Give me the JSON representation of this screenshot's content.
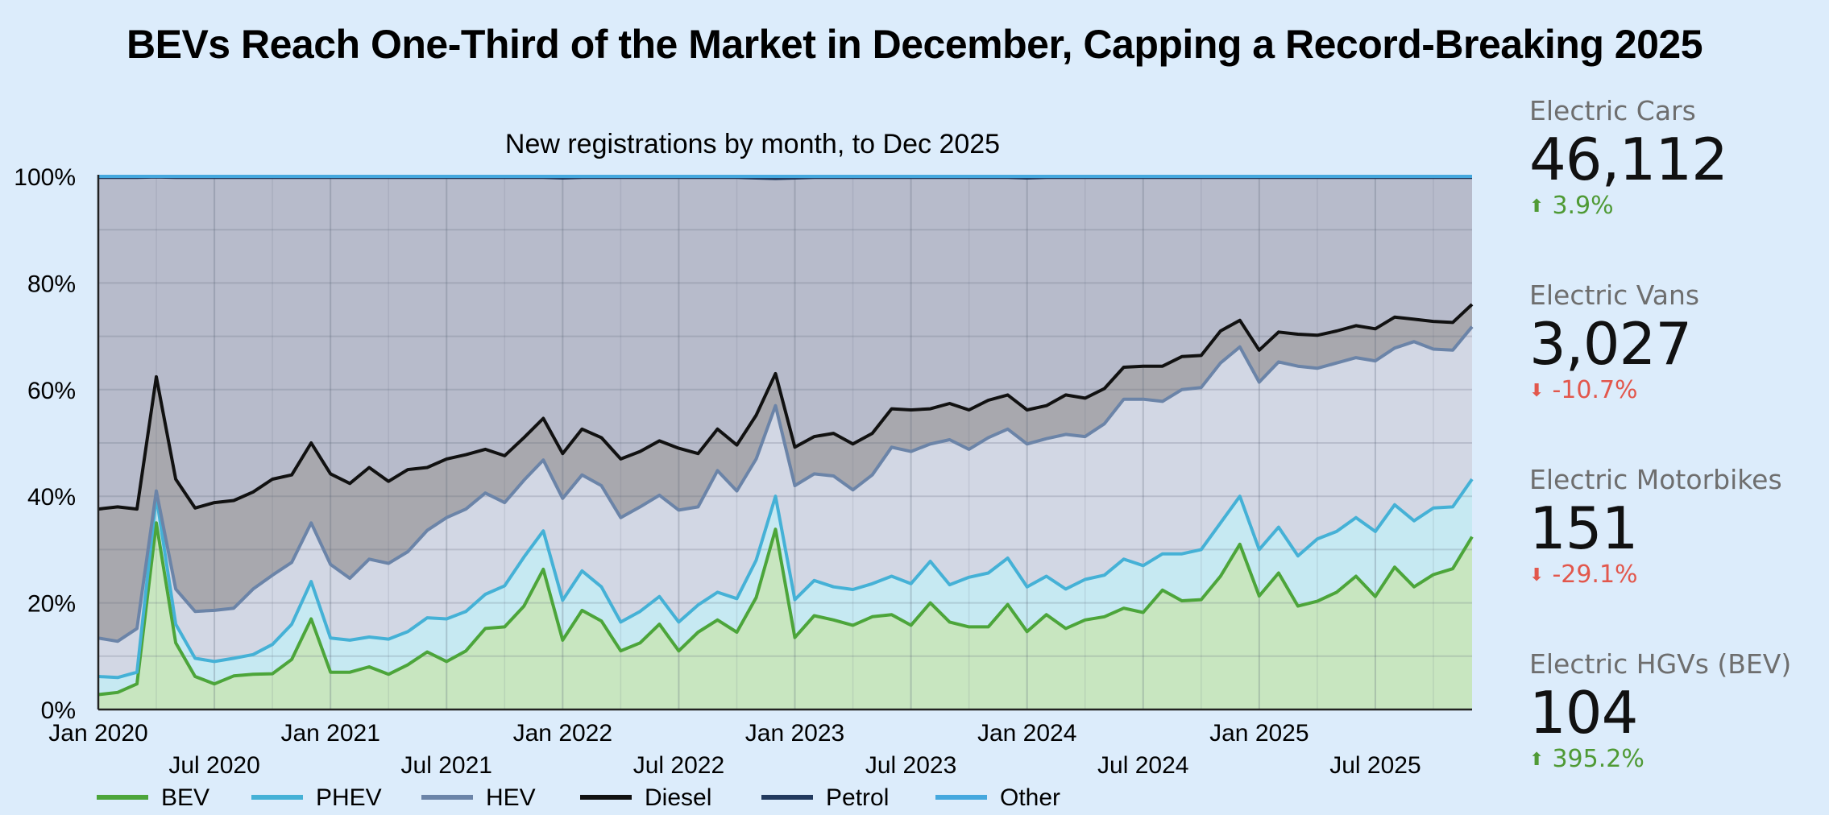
{
  "title": "BEVs Reach One-Third of the Market in December, Capping a Record-Breaking 2025",
  "chart_data": {
    "type": "area",
    "subtitle": "New registrations by month, to  Dec 2025",
    "stacked": true,
    "normalized": true,
    "ylim": [
      0,
      100
    ],
    "y_ticks": [
      "0%",
      "20%",
      "40%",
      "60%",
      "80%",
      "100%"
    ],
    "x_ticks": [
      {
        "index": 0,
        "label": "Jan 2020",
        "row": 0
      },
      {
        "index": 6,
        "label": "Jul 2020",
        "row": 1
      },
      {
        "index": 12,
        "label": "Jan 2021",
        "row": 0
      },
      {
        "index": 18,
        "label": "Jul 2021",
        "row": 1
      },
      {
        "index": 24,
        "label": "Jan 2022",
        "row": 0
      },
      {
        "index": 30,
        "label": "Jul 2022",
        "row": 1
      },
      {
        "index": 36,
        "label": "Jan 2023",
        "row": 0
      },
      {
        "index": 42,
        "label": "Jul 2023",
        "row": 1
      },
      {
        "index": 48,
        "label": "Jan 2024",
        "row": 0
      },
      {
        "index": 54,
        "label": "Jul 2024",
        "row": 1
      },
      {
        "index": 60,
        "label": "Jan 2025",
        "row": 0
      },
      {
        "index": 66,
        "label": "Jul 2025",
        "row": 1
      }
    ],
    "grid": true,
    "legend_position": "bottom",
    "series": [
      {
        "name": "BEV",
        "line_color": "#4ca53a",
        "fill_color": "#c8e6c0",
        "values": [
          2.8,
          3.2,
          4.8,
          35.0,
          12.5,
          6.2,
          4.8,
          6.3,
          6.6,
          6.7,
          9.4,
          17.0,
          7.0,
          7.0,
          8.0,
          6.6,
          8.4,
          10.8,
          9.0,
          11.0,
          15.2,
          15.5,
          19.4,
          26.3,
          13.0,
          18.6,
          16.6,
          11.0,
          12.5,
          16.0,
          11.0,
          14.5,
          16.8,
          14.5,
          21.0,
          33.8,
          13.5,
          17.6,
          16.8,
          15.8,
          17.4,
          17.8,
          15.8,
          20.0,
          16.4,
          15.5,
          15.5,
          19.7,
          14.6,
          17.8,
          15.2,
          16.8,
          17.4,
          19.0,
          18.2,
          22.4,
          20.4,
          20.6,
          25.0,
          31.0,
          21.3,
          25.6,
          19.4,
          20.3,
          22.0,
          25.0,
          21.2,
          26.7,
          23.0,
          25.3,
          26.4,
          32.4
        ]
      },
      {
        "name": "PHEV",
        "line_color": "#45b1d6",
        "fill_color": "#c6e9f2",
        "values": [
          6.2,
          6.0,
          7.0,
          40.0,
          16.0,
          9.6,
          9.0,
          9.6,
          10.3,
          12.2,
          16.0,
          24.0,
          13.4,
          13.0,
          13.6,
          13.2,
          14.6,
          17.2,
          17.0,
          18.4,
          21.6,
          23.2,
          28.6,
          33.5,
          20.5,
          26.0,
          23.0,
          16.4,
          18.4,
          21.2,
          16.4,
          19.6,
          22.0,
          20.8,
          28.0,
          40.0,
          20.6,
          24.2,
          23.0,
          22.5,
          23.6,
          25.0,
          23.6,
          27.8,
          23.4,
          24.8,
          25.6,
          28.4,
          23.0,
          25.0,
          22.6,
          24.4,
          25.2,
          28.2,
          27.0,
          29.2,
          29.2,
          30.0,
          35.0,
          40.0,
          30.0,
          34.2,
          28.8,
          32.0,
          33.4,
          36.0,
          33.4,
          38.4,
          35.4,
          37.8,
          38.0,
          43.2
        ]
      },
      {
        "name": "HEV",
        "line_color": "#6b84a8",
        "fill_color": "#d2d7e4",
        "values": [
          13.4,
          12.8,
          15.2,
          41.0,
          22.6,
          18.4,
          18.6,
          19.0,
          22.6,
          25.2,
          27.6,
          35.0,
          27.2,
          24.6,
          28.2,
          27.4,
          29.6,
          33.6,
          36.0,
          37.6,
          40.6,
          38.8,
          43.0,
          46.8,
          39.6,
          44.0,
          42.0,
          36.0,
          38.0,
          40.2,
          37.4,
          38.0,
          44.8,
          41.0,
          47.0,
          57.0,
          42.0,
          44.2,
          43.8,
          41.2,
          44.0,
          49.2,
          48.4,
          49.8,
          50.6,
          48.8,
          51.0,
          52.6,
          49.8,
          50.8,
          51.6,
          51.2,
          53.6,
          58.2,
          58.2,
          57.8,
          60.0,
          60.4,
          65.0,
          68.0,
          61.4,
          65.2,
          64.4,
          64.0,
          65.0,
          66.0,
          65.4,
          67.8,
          69.0,
          67.6,
          67.4,
          71.8
        ]
      },
      {
        "name": "Diesel",
        "line_color": "#111111",
        "fill_color": "#a8a8ae",
        "values": [
          37.6,
          38.0,
          37.6,
          62.4,
          43.2,
          37.8,
          38.8,
          39.2,
          40.8,
          43.2,
          44.0,
          50.0,
          44.2,
          42.4,
          45.4,
          42.8,
          45.0,
          45.4,
          47.0,
          47.8,
          48.8,
          47.6,
          51.0,
          54.6,
          48.0,
          52.6,
          51.0,
          47.0,
          48.4,
          50.4,
          49.0,
          48.0,
          52.6,
          49.6,
          55.2,
          63.0,
          49.2,
          51.2,
          51.8,
          49.8,
          51.8,
          56.4,
          56.2,
          56.4,
          57.4,
          56.2,
          58.0,
          59.0,
          56.2,
          57.0,
          59.0,
          58.4,
          60.2,
          64.2,
          64.4,
          64.4,
          66.2,
          66.4,
          71.0,
          73.0,
          67.4,
          70.8,
          70.4,
          70.2,
          71.0,
          72.0,
          71.4,
          73.6,
          73.2,
          72.8,
          72.6,
          76.0
        ]
      },
      {
        "name": "Petrol",
        "line_color": "#223a5e",
        "fill_color": "#b7bbcb",
        "values": [
          99.8,
          99.8,
          99.8,
          99.9,
          99.8,
          99.8,
          99.8,
          99.8,
          99.8,
          99.8,
          99.8,
          99.8,
          99.8,
          99.8,
          99.8,
          99.8,
          99.8,
          99.8,
          99.8,
          99.8,
          99.8,
          99.8,
          99.8,
          99.8,
          99.7,
          99.8,
          99.8,
          99.8,
          99.8,
          99.8,
          99.8,
          99.8,
          99.8,
          99.8,
          99.7,
          99.6,
          99.7,
          99.8,
          99.8,
          99.8,
          99.8,
          99.8,
          99.8,
          99.8,
          99.8,
          99.8,
          99.8,
          99.8,
          99.7,
          99.8,
          99.8,
          99.8,
          99.8,
          99.8,
          99.8,
          99.8,
          99.8,
          99.8,
          99.8,
          99.8,
          99.8,
          99.8,
          99.8,
          99.8,
          99.8,
          99.8,
          99.8,
          99.8,
          99.8,
          99.8,
          99.8,
          99.8
        ]
      },
      {
        "name": "Other",
        "line_color": "#45a8de",
        "fill_color": "#a6d4f0",
        "values": [
          100,
          100,
          100,
          100,
          100,
          100,
          100,
          100,
          100,
          100,
          100,
          100,
          100,
          100,
          100,
          100,
          100,
          100,
          100,
          100,
          100,
          100,
          100,
          100,
          100,
          100,
          100,
          100,
          100,
          100,
          100,
          100,
          100,
          100,
          100,
          100,
          100,
          100,
          100,
          100,
          100,
          100,
          100,
          100,
          100,
          100,
          100,
          100,
          100,
          100,
          100,
          100,
          100,
          100,
          100,
          100,
          100,
          100,
          100,
          100,
          100,
          100,
          100,
          100,
          100,
          100,
          100,
          100,
          100,
          100,
          100,
          100
        ]
      }
    ]
  },
  "kpis": [
    {
      "label": "Electric Cars",
      "value": "46,112",
      "change": "3.9%",
      "direction": "up"
    },
    {
      "label": "Electric Vans",
      "value": "3,027",
      "change": "-10.7%",
      "direction": "down"
    },
    {
      "label": "Electric Motorbikes",
      "value": "151",
      "change": "-29.1%",
      "direction": "down"
    },
    {
      "label": "Electric HGVs (BEV)",
      "value": "104",
      "change": "395.2%",
      "direction": "up"
    }
  ],
  "colors": {
    "up": "#4f9a35",
    "down": "#e2574c",
    "background": "#dcecfb"
  }
}
